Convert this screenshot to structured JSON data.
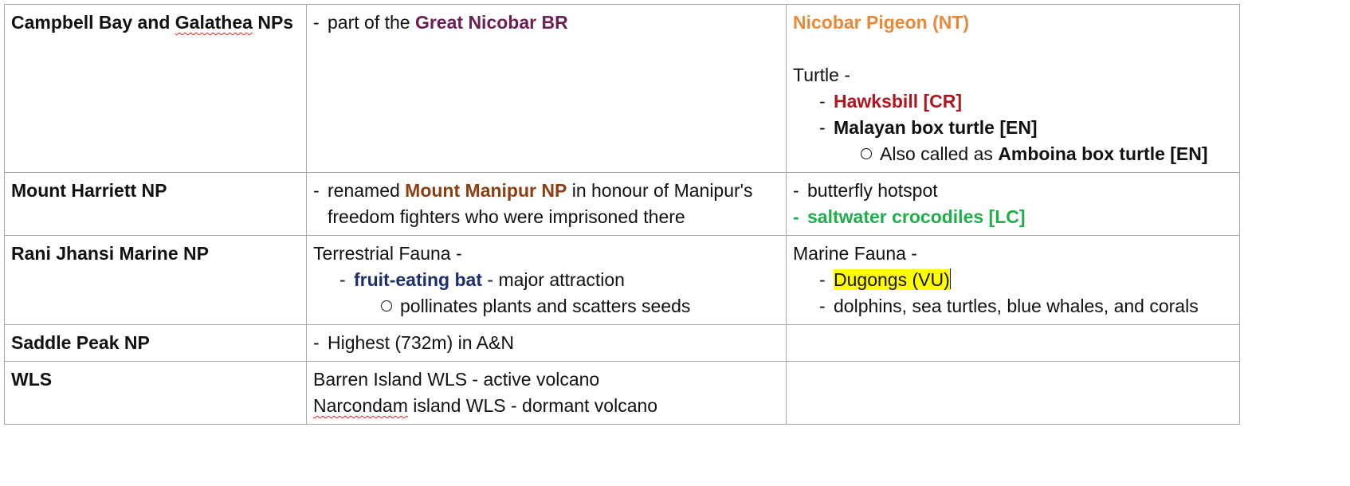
{
  "rows": [
    {
      "name_pre": "Campbell Bay and ",
      "name_spell": "Galathea",
      "name_post": " NPs",
      "desc": {
        "pre": "part of the ",
        "highlight": "Great Nicobar BR"
      },
      "notes": {
        "species": "Nicobar Pigeon (NT)",
        "turtle_label": "Turtle -",
        "hawksbill": "Hawksbill [CR]",
        "malayan": "Malayan box turtle [EN]",
        "aka_pre": "Also called as ",
        "aka_name": "Amboina box turtle [EN]"
      }
    },
    {
      "name": "Mount Harriett NP",
      "desc": {
        "pre": "renamed ",
        "highlight": "Mount Manipur NP",
        "post": " in honour of Manipur's freedom fighters who were imprisoned there"
      },
      "notes": {
        "item1": "butterfly hotspot",
        "item2": "saltwater crocodiles [LC]"
      }
    },
    {
      "name": "Rani Jhansi Marine NP",
      "desc": {
        "label": "Terrestrial Fauna -",
        "bat": "fruit-eating bat",
        "bat_post": " - major attraction",
        "sub": "pollinates plants and scatters seeds"
      },
      "notes": {
        "label": "Marine Fauna -",
        "dugong": "Dugongs (VU)",
        "other": "dolphins, sea turtles, blue whales, and corals"
      }
    },
    {
      "name": "Saddle Peak NP",
      "desc": {
        "item": "Highest (732m) in A&N"
      }
    },
    {
      "name": "WLS",
      "desc": {
        "line1": "Barren Island WLS - active volcano",
        "line2_spell": "Narcondam",
        "line2_post": " island WLS - dormant volcano"
      }
    }
  ]
}
